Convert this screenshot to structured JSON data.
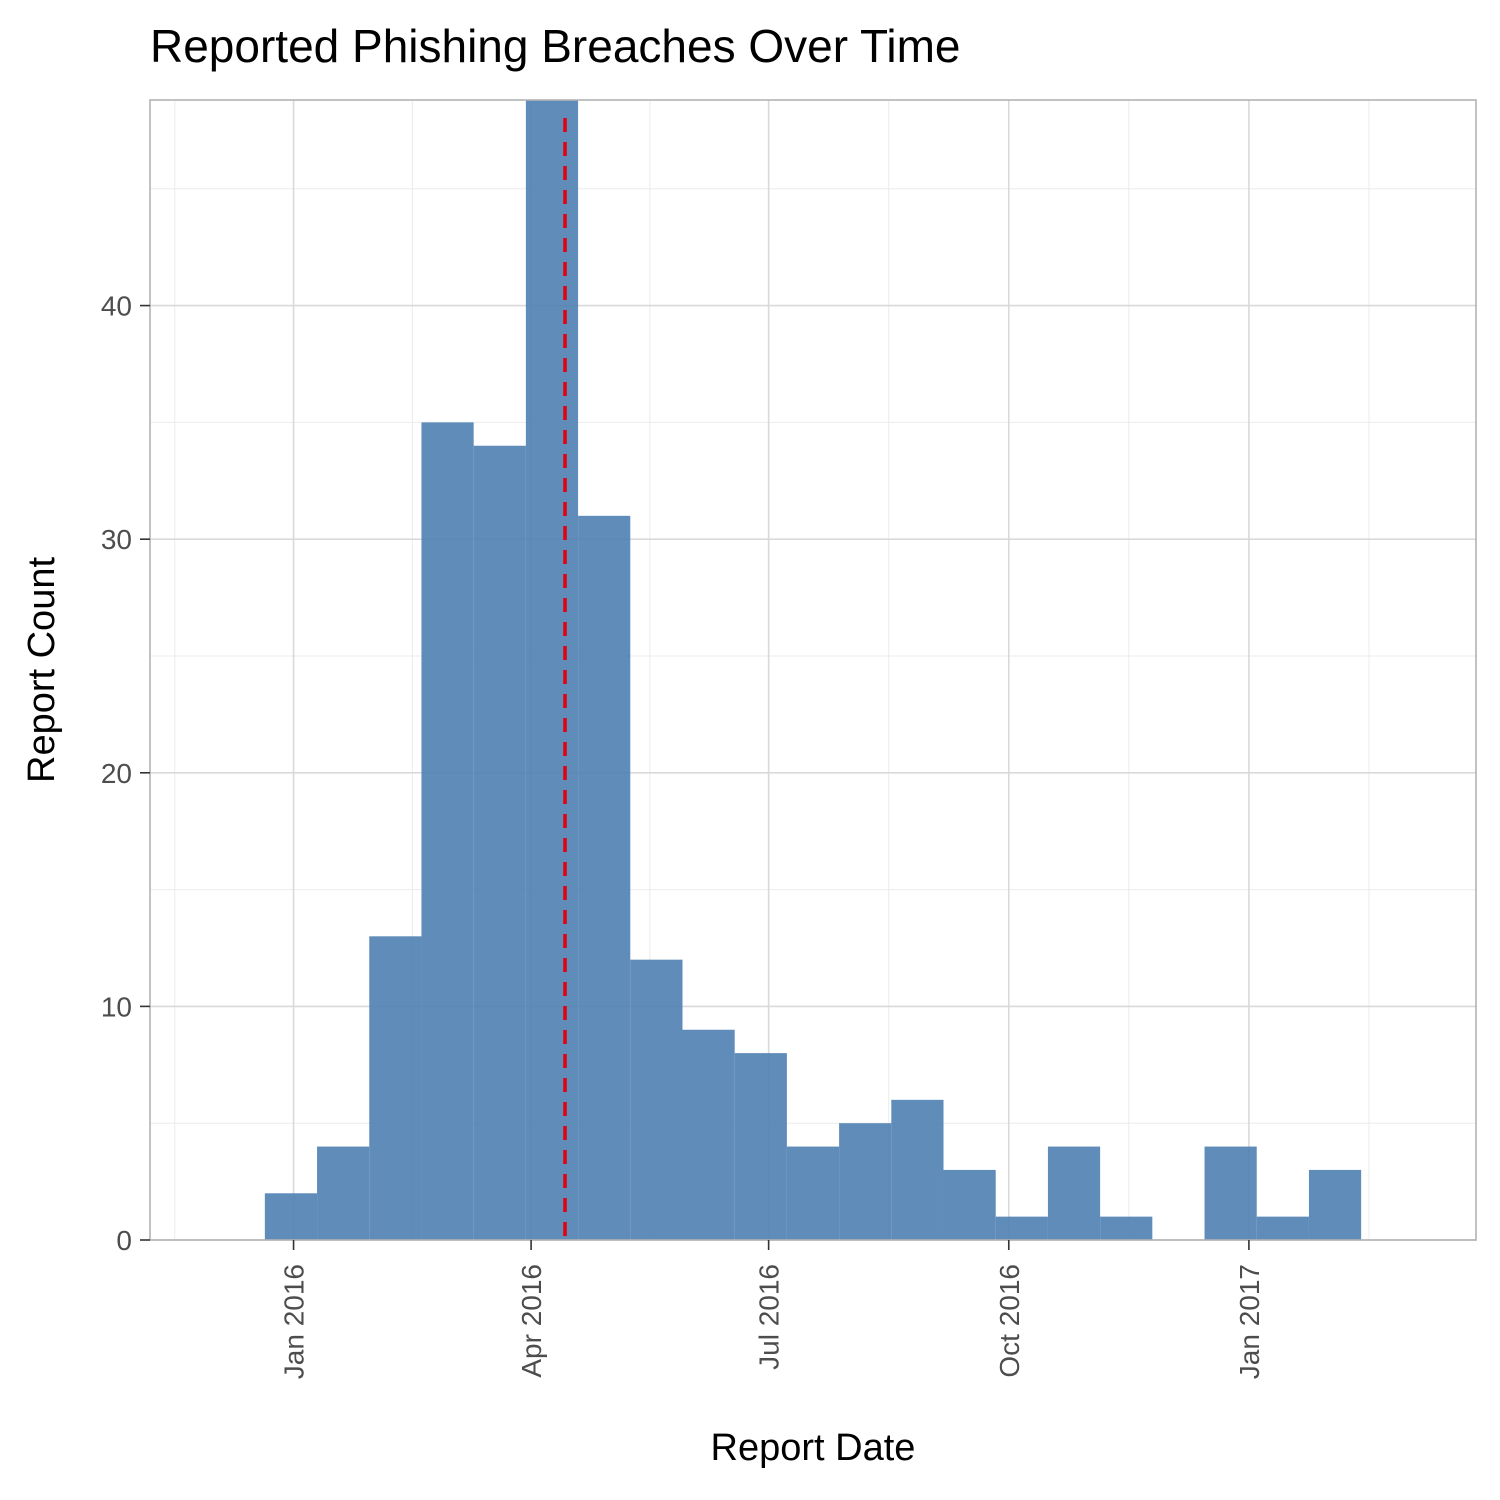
{
  "chart_data": {
    "type": "bar",
    "title": "Reported Phishing Breaches Over Time",
    "xlabel": "Report Date",
    "ylabel": "Report Count",
    "x_ticks": [
      {
        "date": "2016-01-01",
        "label": "Jan 2016"
      },
      {
        "date": "2016-04-01",
        "label": "Apr 2016"
      },
      {
        "date": "2016-07-01",
        "label": "Jul 2016"
      },
      {
        "date": "2016-10-01",
        "label": "Oct 2016"
      },
      {
        "date": "2017-01-01",
        "label": "Jan 2017"
      }
    ],
    "xlim": [
      "2015-11-07",
      "2017-03-29"
    ],
    "y_ticks": [
      0,
      10,
      20,
      30,
      40
    ],
    "ylim": [
      0,
      48.8
    ],
    "bins": [
      {
        "start": "2015-12-21",
        "end": "2016-01-10",
        "count": 2
      },
      {
        "start": "2016-01-10",
        "end": "2016-01-30",
        "count": 4
      },
      {
        "start": "2016-01-30",
        "end": "2016-02-19",
        "count": 13
      },
      {
        "start": "2016-02-19",
        "end": "2016-03-10",
        "count": 35
      },
      {
        "start": "2016-03-10",
        "end": "2016-03-30",
        "count": 34
      },
      {
        "start": "2016-03-30",
        "end": "2016-04-19",
        "count": 49
      },
      {
        "start": "2016-04-19",
        "end": "2016-05-09",
        "count": 31
      },
      {
        "start": "2016-05-09",
        "end": "2016-05-29",
        "count": 12
      },
      {
        "start": "2016-05-29",
        "end": "2016-06-18",
        "count": 9
      },
      {
        "start": "2016-06-18",
        "end": "2016-07-08",
        "count": 8
      },
      {
        "start": "2016-07-08",
        "end": "2016-07-28",
        "count": 4
      },
      {
        "start": "2016-07-28",
        "end": "2016-08-17",
        "count": 5
      },
      {
        "start": "2016-08-17",
        "end": "2016-09-06",
        "count": 6
      },
      {
        "start": "2016-09-06",
        "end": "2016-09-26",
        "count": 3
      },
      {
        "start": "2016-09-26",
        "end": "2016-10-16",
        "count": 1
      },
      {
        "start": "2016-10-16",
        "end": "2016-11-05",
        "count": 4
      },
      {
        "start": "2016-11-05",
        "end": "2016-11-25",
        "count": 1
      },
      {
        "start": "2016-11-25",
        "end": "2016-12-15",
        "count": 0
      },
      {
        "start": "2016-12-15",
        "end": "2017-01-04",
        "count": 4
      },
      {
        "start": "2017-01-04",
        "end": "2017-01-24",
        "count": 1
      },
      {
        "start": "2017-01-24",
        "end": "2017-02-13",
        "count": 3
      }
    ],
    "reference_line": {
      "date": "2016-04-14",
      "style": "dashed"
    },
    "grid": true,
    "colors": {
      "bar": "#4f7fb3",
      "reference_line": "#e3000f"
    }
  }
}
